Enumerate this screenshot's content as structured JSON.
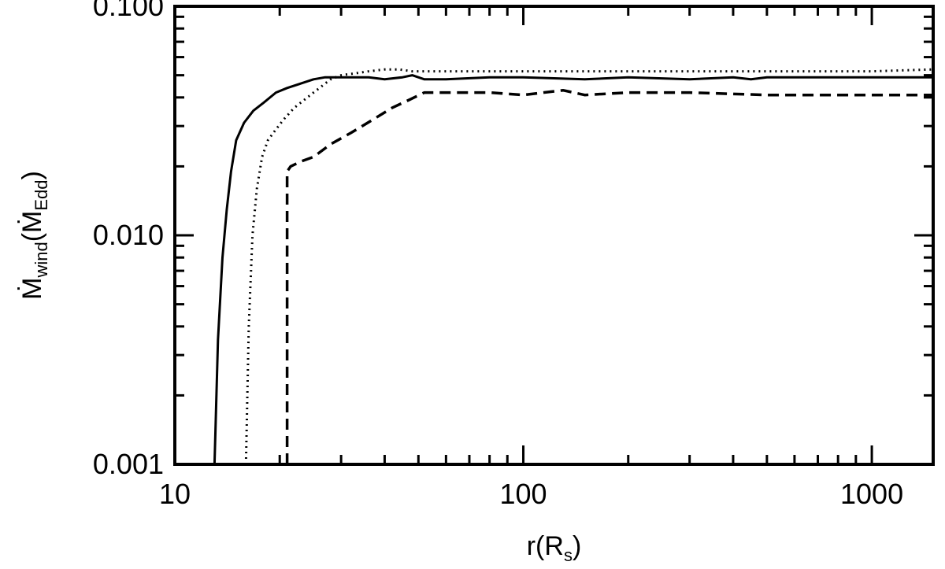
{
  "chart_data": {
    "type": "line",
    "xscale": "log",
    "yscale": "log",
    "xlim": [
      10,
      1500
    ],
    "ylim": [
      0.001,
      0.1
    ],
    "xticks": [
      "10",
      "100",
      "1000"
    ],
    "yticks": [
      "0.001",
      "0.010",
      "0.100"
    ],
    "xlabel": {
      "main": "r(R",
      "sub": "s",
      "close": ")"
    },
    "ylabel": {
      "main": "Ṁ",
      "sub": "wind",
      "open": "(Ṁ",
      "sub2": "Edd",
      "close": ")"
    },
    "grid": false,
    "series": [
      {
        "style": "solid",
        "x": [
          13,
          13.3,
          13.7,
          14.1,
          14.5,
          15,
          15.8,
          16.8,
          18,
          19.5,
          21,
          23,
          25,
          27,
          29,
          32,
          36,
          40,
          45,
          48,
          52,
          60,
          80,
          100,
          150,
          200,
          300,
          400,
          450,
          500,
          700,
          1000,
          1500
        ],
        "y": [
          0.001,
          0.0035,
          0.008,
          0.013,
          0.019,
          0.026,
          0.031,
          0.035,
          0.038,
          0.042,
          0.044,
          0.046,
          0.048,
          0.049,
          0.049,
          0.049,
          0.049,
          0.048,
          0.049,
          0.05,
          0.048,
          0.048,
          0.049,
          0.049,
          0.048,
          0.049,
          0.048,
          0.049,
          0.048,
          0.049,
          0.049,
          0.049,
          0.049
        ]
      },
      {
        "style": "dotted",
        "x": [
          16,
          16.3,
          16.7,
          17.2,
          17.8,
          18.5,
          19.5,
          20.5,
          22,
          24,
          26,
          28,
          30,
          33,
          36,
          40,
          44,
          48,
          55,
          70,
          100,
          150,
          200,
          300,
          500,
          1000,
          1500
        ],
        "y": [
          0.001,
          0.004,
          0.01,
          0.016,
          0.022,
          0.026,
          0.029,
          0.032,
          0.036,
          0.04,
          0.044,
          0.048,
          0.05,
          0.051,
          0.052,
          0.053,
          0.053,
          0.052,
          0.052,
          0.052,
          0.052,
          0.052,
          0.052,
          0.052,
          0.052,
          0.052,
          0.053
        ]
      },
      {
        "style": "dashed",
        "x": [
          21,
          21,
          21.5,
          23,
          25,
          28,
          32,
          37,
          42,
          47,
          52,
          60,
          80,
          100,
          130,
          150,
          200,
          300,
          500,
          1000,
          1500
        ],
        "y": [
          0.001,
          0.019,
          0.02,
          0.021,
          0.022,
          0.025,
          0.028,
          0.032,
          0.036,
          0.039,
          0.042,
          0.042,
          0.042,
          0.041,
          0.043,
          0.041,
          0.042,
          0.042,
          0.041,
          0.041,
          0.041
        ]
      }
    ]
  }
}
